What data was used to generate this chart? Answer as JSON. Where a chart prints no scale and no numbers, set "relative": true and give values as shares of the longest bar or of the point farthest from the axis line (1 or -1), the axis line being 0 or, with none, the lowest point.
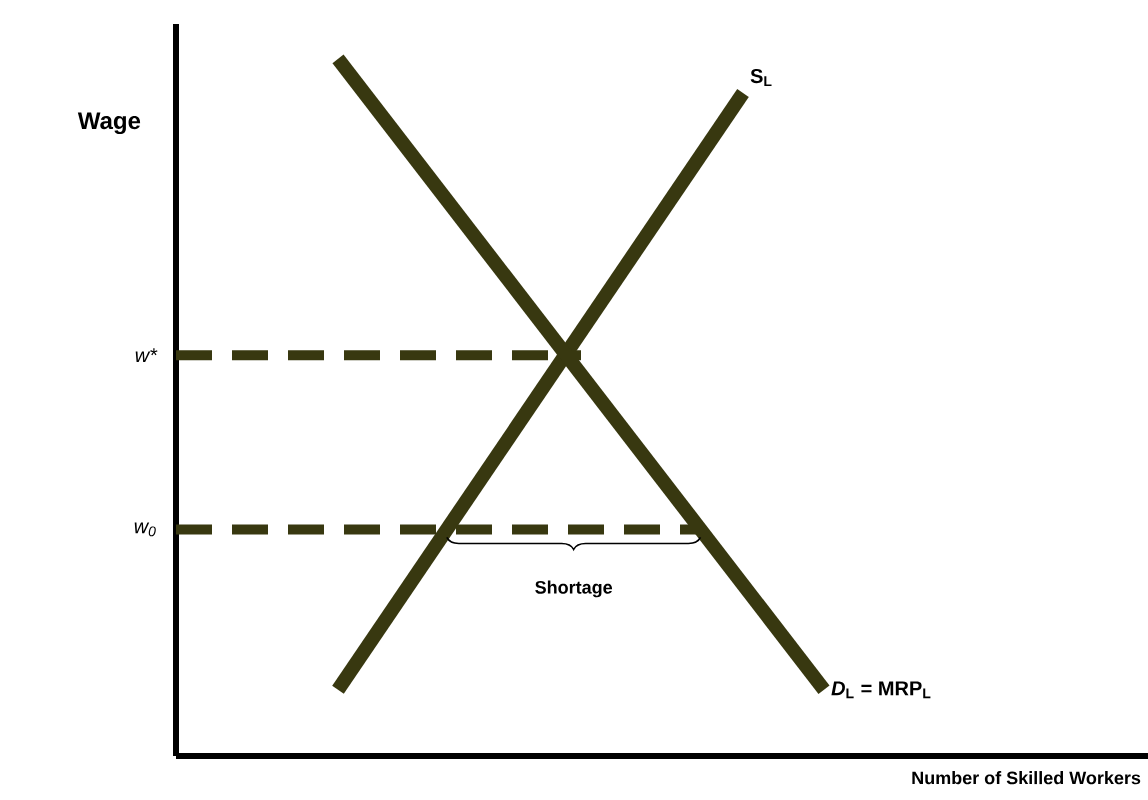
{
  "chart_data": {
    "type": "line",
    "relative": true,
    "xlabel": "Number of Skilled Workers",
    "ylabel": "Wage",
    "categories": [
      null,
      null,
      null,
      null,
      null,
      null,
      null,
      null,
      null,
      null,
      null,
      null,
      null,
      null,
      null,
      null,
      null,
      null,
      null,
      null,
      null,
      null,
      null,
      null,
      null
    ],
    "series": [
      {
        "name": "S$_{L}$",
        "color": "#383810",
        "values": [
          null,
          null,
          null,
          null,
          0.095,
          null,
          null,
          null,
          null,
          null,
          null,
          null,
          null,
          null,
          0.951,
          null,
          null,
          null,
          null,
          null,
          null,
          null,
          null,
          null,
          null
        ]
      },
      {
        "name": "*D*$_{L}$ = MRP$_{L}$",
        "color": "#383810",
        "values": [
          null,
          null,
          null,
          null,
          1,
          null,
          null,
          null,
          null,
          null,
          null,
          null,
          null,
          null,
          null,
          null,
          0.095,
          null,
          null,
          null,
          null,
          null,
          null,
          null,
          null
        ]
      },
      {
        "color": "#383810",
        "line_style": "dashed",
        "values": [
          0.575,
          null,
          null,
          null,
          null,
          null,
          null,
          null,
          null,
          null,
          0.575,
          null,
          null,
          null,
          null,
          null,
          null,
          null,
          null,
          null,
          null,
          null,
          null,
          null,
          null
        ]
      },
      {
        "color": "#383810",
        "line_style": "dashed",
        "values": [
          0.325,
          null,
          null,
          null,
          null,
          null,
          null,
          null,
          null,
          null,
          null,
          null,
          null,
          0.325,
          null,
          null,
          null,
          null,
          null,
          null,
          null,
          null,
          null,
          null,
          null
        ]
      }
    ],
    "annotations": [
      "w*",
      "w$_{0}$",
      "Shortage"
    ]
  }
}
